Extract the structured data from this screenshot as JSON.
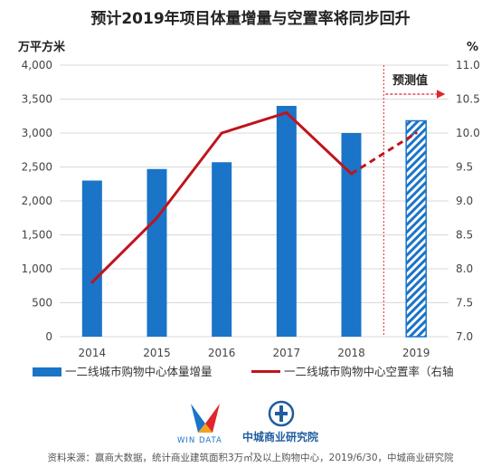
{
  "title": "预计2019年项目体量增量与空置率将同步回升",
  "chart_data": {
    "type": "bar",
    "categories": [
      "2014",
      "2015",
      "2016",
      "2017",
      "2018",
      "2019"
    ],
    "left_axis": {
      "unit": "万平方米",
      "ylim": [
        0,
        4000
      ],
      "ticks": [
        "0",
        "500",
        "1,000",
        "1,500",
        "2,000",
        "2,500",
        "3,000",
        "3,500",
        "4,000"
      ]
    },
    "right_axis": {
      "unit": "%",
      "ylim": [
        7.0,
        11.0
      ],
      "ticks": [
        "7.0",
        "7.5",
        "8.0",
        "8.5",
        "9.0",
        "9.5",
        "10.0",
        "10.5",
        "11.0"
      ]
    },
    "series": [
      {
        "name": "一二线城市购物中心体量增量",
        "type": "bar",
        "axis": "left",
        "values": [
          2300,
          2470,
          2570,
          3400,
          3000,
          3180
        ],
        "forecast_from_index": 5
      },
      {
        "name": "一二线城市购物中心空置率（右轴",
        "type": "line",
        "axis": "right",
        "values": [
          7.8,
          8.75,
          10.0,
          10.3,
          9.4,
          10.0
        ],
        "forecast_from_index": 4
      }
    ],
    "forecast_label": "预测值",
    "grid": true,
    "legend_position": "bottom"
  },
  "colors": {
    "bar": "#1a74c8",
    "line": "#c0141c",
    "grid": "#d9d9d9",
    "forecast": "#e0262c"
  },
  "logos": {
    "win_data_name": "赢商大数据",
    "win_data_en": "WIN DATA",
    "cc_name": "中城商业研究院"
  },
  "footer": "资料来源：赢商大数据，统计商业建筑面积3万㎡及以上购物中心，2019/6/30，中城商业研究院"
}
